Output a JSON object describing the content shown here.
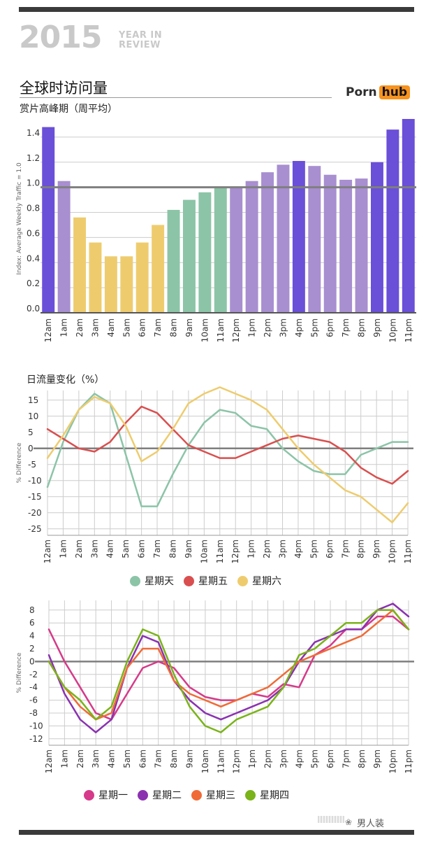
{
  "header": {
    "year": "2015",
    "tag_line1": "YEAR IN",
    "tag_line2": "REVIEW",
    "title": "全球时访问量",
    "subtitle": "赏片高峰期（周平均）",
    "logo_part1": "Porn",
    "logo_part2": "hub"
  },
  "line_section_title": "日流量变化（%）",
  "watermark": "男人装",
  "colors": {
    "purple_dark": "#6a4fd8",
    "purple_light": "#a88fd0",
    "yellow": "#eecc6e",
    "green": "#8cc4a7",
    "sunday": "#8cc4a7",
    "friday": "#d94f4f",
    "saturday": "#eecc6e",
    "monday": "#d63a8a",
    "tuesday": "#8a32b0",
    "wednesday": "#f06a36",
    "thursday": "#7ab31a",
    "grid": "#cccccc",
    "axis": "#7f7f7f"
  },
  "chart_data": [
    {
      "type": "bar",
      "title": "全球时访问量",
      "subtitle": "赏片高峰期（周平均）",
      "ylabel": "Index: Average Weekly Traffic = 1.0",
      "ylim": [
        0,
        1.5
      ],
      "yticks": [
        "0.0",
        "0.2",
        "0.4",
        "0.6",
        "0.8",
        "1.0",
        "1.2",
        "1.4"
      ],
      "reference_line": 1.0,
      "categories": [
        "12am",
        "1am",
        "2am",
        "3am",
        "4am",
        "5am",
        "6am",
        "7am",
        "8am",
        "9am",
        "10am",
        "11am",
        "12pm",
        "1pm",
        "2pm",
        "3pm",
        "4pm",
        "5pm",
        "6pm",
        "7pm",
        "8pm",
        "9pm",
        "10pm",
        "11pm"
      ],
      "values": [
        1.48,
        1.05,
        0.76,
        0.56,
        0.45,
        0.45,
        0.56,
        0.7,
        0.82,
        0.9,
        0.96,
        1.0,
        1.0,
        1.05,
        1.12,
        1.18,
        1.21,
        1.17,
        1.1,
        1.06,
        1.07,
        1.2,
        1.46,
        1.57
      ],
      "bar_colors": [
        "purple_dark",
        "purple_light",
        "yellow",
        "yellow",
        "yellow",
        "yellow",
        "yellow",
        "yellow",
        "green",
        "green",
        "green",
        "green",
        "purple_light",
        "purple_light",
        "purple_light",
        "purple_light",
        "purple_dark",
        "purple_light",
        "purple_light",
        "purple_light",
        "purple_light",
        "purple_dark",
        "purple_dark",
        "purple_dark"
      ]
    },
    {
      "type": "line",
      "ylabel": "% Difference",
      "ylim": [
        -27,
        18
      ],
      "yticks": [
        "15",
        "10",
        "5",
        "0",
        "-5",
        "-10",
        "-15",
        "-20",
        "-25"
      ],
      "ytick_values": [
        15,
        10,
        5,
        0,
        -5,
        -10,
        -15,
        -20,
        -25
      ],
      "categories": [
        "12am",
        "1am",
        "2am",
        "3am",
        "4am",
        "5am",
        "6am",
        "7am",
        "8am",
        "9am",
        "10am",
        "11am",
        "12pm",
        "1pm",
        "2pm",
        "3pm",
        "4pm",
        "5pm",
        "6pm",
        "7pm",
        "8pm",
        "9pm",
        "10pm",
        "11pm"
      ],
      "series": [
        {
          "name": "星期天",
          "color_key": "sunday",
          "values": [
            -12,
            2,
            12,
            17,
            14,
            -2,
            -18,
            -18,
            -8,
            1,
            8,
            12,
            11,
            7,
            6,
            0,
            -4,
            -7,
            -8,
            -8,
            -2,
            0,
            2,
            2
          ]
        },
        {
          "name": "星期五",
          "color_key": "friday",
          "values": [
            6,
            3,
            0,
            -1,
            2,
            8,
            13,
            11,
            6,
            1,
            -1,
            -3,
            -3,
            -1,
            1,
            3,
            4,
            3,
            2,
            -1,
            -6,
            -9,
            -11,
            -7
          ]
        },
        {
          "name": "星期六",
          "color_key": "saturday",
          "values": [
            -3,
            4,
            12,
            16,
            14,
            7,
            -4,
            -1,
            6,
            14,
            17,
            19,
            17,
            15,
            12,
            6,
            0,
            -5,
            -9,
            -13,
            -15,
            -19,
            -23,
            -17
          ]
        }
      ]
    },
    {
      "type": "line",
      "ylabel": "% Difference",
      "ylim": [
        -13,
        9.5
      ],
      "yticks": [
        "8",
        "6",
        "4",
        "2",
        "0",
        "-2",
        "-4",
        "-6",
        "-8",
        "-10",
        "-12"
      ],
      "ytick_values": [
        8,
        6,
        4,
        2,
        0,
        -2,
        -4,
        -6,
        -8,
        -10,
        -12
      ],
      "categories": [
        "12am",
        "1am",
        "2am",
        "3am",
        "4am",
        "5am",
        "6am",
        "7am",
        "8am",
        "9am",
        "10am",
        "11am",
        "12pm",
        "1pm",
        "2pm",
        "3pm",
        "4pm",
        "5pm",
        "6pm",
        "7pm",
        "8pm",
        "9pm",
        "10pm",
        "11pm"
      ],
      "series": [
        {
          "name": "星期一",
          "color_key": "monday",
          "values": [
            5,
            0,
            -4,
            -8,
            -9,
            -5,
            -1,
            0,
            -1,
            -4,
            -5.5,
            -6,
            -6,
            -5,
            -5.5,
            -3.5,
            -4,
            1,
            2.5,
            5,
            5,
            7,
            7,
            5
          ]
        },
        {
          "name": "星期二",
          "color_key": "tuesday",
          "values": [
            1,
            -5,
            -9,
            -11,
            -9,
            -1,
            4,
            3,
            -3,
            -6,
            -8,
            -9,
            -8,
            -7,
            -6,
            -4,
            0,
            3,
            4,
            5,
            5,
            8,
            9,
            7
          ]
        },
        {
          "name": "星期三",
          "color_key": "wednesday",
          "values": [
            0,
            -4,
            -7,
            -9,
            -8,
            -1,
            2,
            2,
            -3,
            -5,
            -6,
            -7,
            -6,
            -5,
            -4,
            -2,
            0,
            1,
            2,
            3,
            4,
            6,
            8,
            5
          ]
        },
        {
          "name": "星期四",
          "color_key": "thursday",
          "values": [
            0,
            -4,
            -6,
            -9,
            -7,
            0,
            5,
            4,
            -2,
            -7,
            -10,
            -11,
            -9,
            -8,
            -7,
            -4,
            1,
            2,
            4,
            6,
            6,
            8,
            8,
            5
          ]
        }
      ]
    }
  ]
}
